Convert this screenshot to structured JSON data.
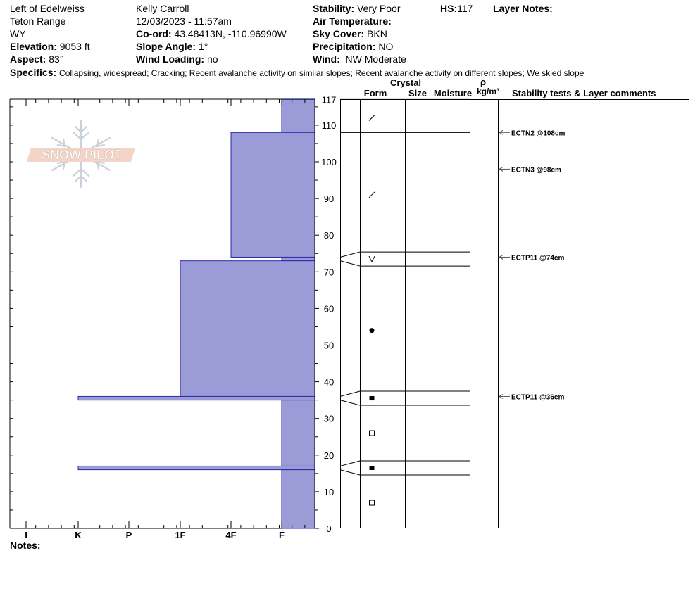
{
  "header": {
    "location": "Left of Edelweiss",
    "range": "Teton Range",
    "state": "WY",
    "elevation_label": "Elevation:",
    "elevation": "9053 ft",
    "aspect_label": "Aspect:",
    "aspect": "83°",
    "observer": "Kelly Carroll",
    "datetime": "12/03/2023 - 11:57am",
    "coord_label": "Co-ord:",
    "coord": "43.48413N, -110.96990W",
    "slope_label": "Slope Angle:",
    "slope": "1°",
    "windload_label": "Wind Loading:",
    "windload": "no",
    "stability_label": "Stability:",
    "stability": "Very Poor",
    "airtemp_label": "Air Temperature:",
    "airtemp": "",
    "sky_label": "Sky Cover:",
    "sky": "BKN",
    "precip_label": "Precipitation:",
    "precip": "NO",
    "wind_label": "Wind:",
    "wind": "NW Moderate",
    "hs_label": "HS:",
    "hs": "117",
    "layer_notes_label": "Layer Notes:",
    "specifics_label": "Specifics:",
    "specifics": "Collapsing, widespread;  Cracking;  Recent avalanche activity on similar slopes;  Recent avalanche activity on different slopes;  We skied slope"
  },
  "notes_label": "Notes:",
  "logo": {
    "text": "SNOW PILOT"
  },
  "table_headers": {
    "crystal": "Crystal",
    "form": "Form",
    "size": "Size",
    "moisture": "Moisture",
    "rho": "ρ",
    "density_unit": "kg/m³",
    "tests": "Stability tests & Layer comments"
  },
  "chart_data": {
    "type": "bar",
    "title": "",
    "ylabel": "",
    "xlabel": "",
    "ylim": [
      0,
      117
    ],
    "y_ticks": [
      0,
      10,
      20,
      30,
      40,
      50,
      60,
      70,
      80,
      90,
      100,
      110,
      117
    ],
    "hardness_scale": [
      "I",
      "K",
      "P",
      "1F",
      "4F",
      "F"
    ],
    "bar_color": "#9b9bd7",
    "layers": [
      {
        "top": 117,
        "bottom": 108,
        "hardness": "F"
      },
      {
        "top": 108,
        "bottom": 74,
        "hardness": "4F"
      },
      {
        "top": 74,
        "bottom": 73,
        "hardness": "F"
      },
      {
        "top": 73,
        "bottom": 36,
        "hardness": "1F"
      },
      {
        "top": 36,
        "bottom": 35,
        "hardness": "K"
      },
      {
        "top": 35,
        "bottom": 17,
        "hardness": "F"
      },
      {
        "top": 17,
        "bottom": 16,
        "hardness": "K"
      },
      {
        "top": 16,
        "bottom": 0,
        "hardness": "F"
      }
    ],
    "form_symbols": [
      {
        "depth": 112,
        "symbol": "/"
      },
      {
        "depth": 91,
        "symbol": "/"
      },
      {
        "depth": 73.5,
        "symbol": "V"
      },
      {
        "depth": 54,
        "symbol": "●"
      },
      {
        "depth": 35.5,
        "symbol": "■"
      },
      {
        "depth": 26,
        "symbol": "□"
      },
      {
        "depth": 16.5,
        "symbol": "■"
      },
      {
        "depth": 7,
        "symbol": "□"
      }
    ],
    "tests": [
      {
        "depth": 108,
        "label": "ECTN2 @108cm"
      },
      {
        "depth": 98,
        "label": "ECTN3 @98cm"
      },
      {
        "depth": 74,
        "label": "ECTP11 @74cm"
      },
      {
        "depth": 36,
        "label": "ECTP11 @36cm"
      }
    ]
  }
}
